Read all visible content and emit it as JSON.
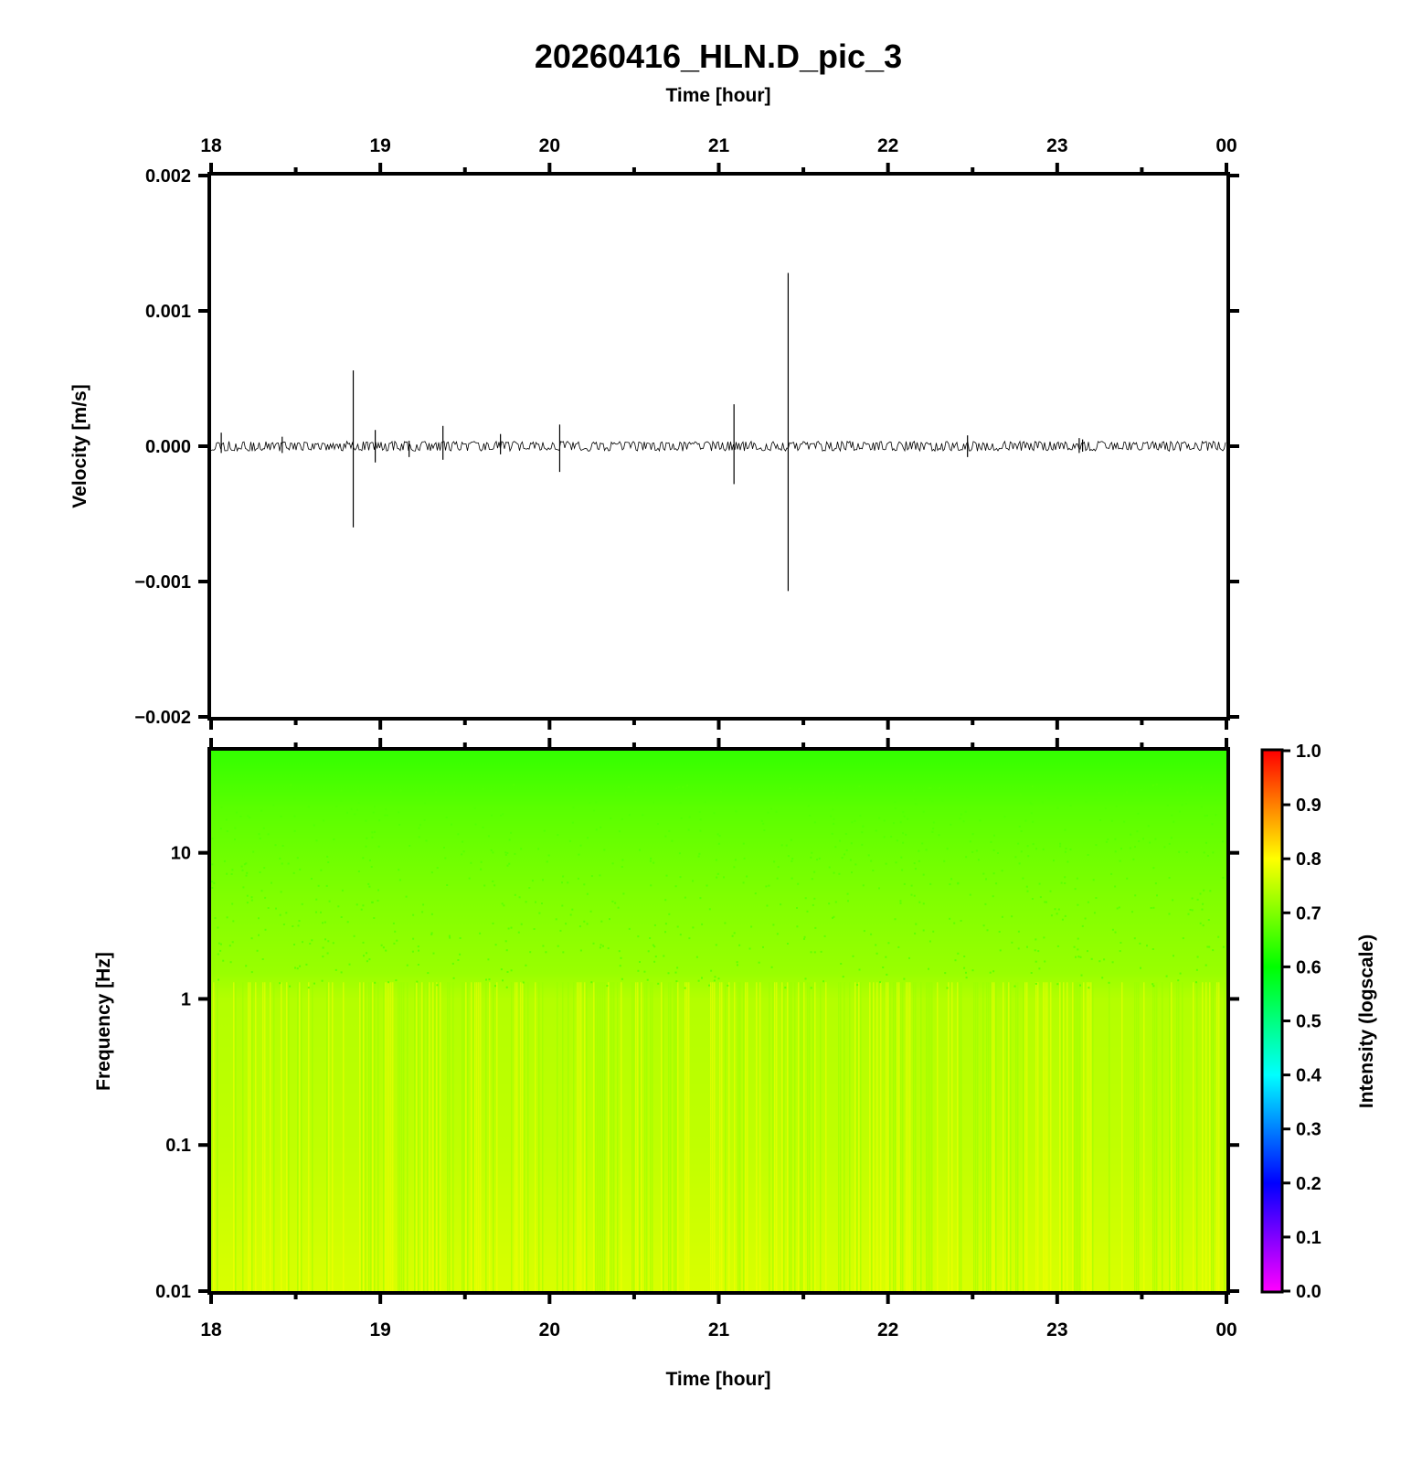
{
  "title": "20260416_HLN.D_pic_3",
  "chart_data": [
    {
      "type": "line",
      "xlabel": "Time [hour]",
      "ylabel": "Velocity [m/s]",
      "x_ticks": [
        "18",
        "19",
        "20",
        "21",
        "22",
        "23",
        "00"
      ],
      "x_range": [
        18,
        24
      ],
      "ylim": [
        -0.002,
        0.002
      ],
      "y_ticks": [
        "0.002",
        "0.001",
        "0.000",
        "−0.001",
        "−0.002"
      ],
      "noise_amplitude": 3e-05,
      "spikes": [
        {
          "t": 18.06,
          "max": 0.0001,
          "min": -5e-05
        },
        {
          "t": 18.42,
          "max": 7e-05,
          "min": -5e-05
        },
        {
          "t": 18.84,
          "max": 0.00056,
          "min": -0.0006
        },
        {
          "t": 18.97,
          "max": 0.00012,
          "min": -0.00012
        },
        {
          "t": 19.17,
          "max": 4e-05,
          "min": -8e-05
        },
        {
          "t": 19.37,
          "max": 0.00015,
          "min": -0.0001
        },
        {
          "t": 19.71,
          "max": 9e-05,
          "min": -6e-05
        },
        {
          "t": 20.06,
          "max": 0.00016,
          "min": -0.00019
        },
        {
          "t": 21.09,
          "max": 0.00031,
          "min": -0.00028
        },
        {
          "t": 21.41,
          "max": 0.00128,
          "min": -0.00107
        },
        {
          "t": 22.47,
          "max": 8e-05,
          "min": -8e-05
        },
        {
          "t": 23.13,
          "max": 6e-05,
          "min": -5e-05
        },
        {
          "t": 23.15,
          "max": 5e-05,
          "min": -4e-05
        }
      ]
    },
    {
      "type": "heatmap",
      "xlabel": "Time [hour]",
      "ylabel": "Frequency [Hz]",
      "x_ticks": [
        "18",
        "19",
        "20",
        "21",
        "22",
        "23",
        "00"
      ],
      "x_range": [
        18,
        24
      ],
      "y_scale": "log",
      "ylim": [
        0.01,
        50
      ],
      "y_ticks": [
        {
          "value": 10,
          "label": "10"
        },
        {
          "value": 1,
          "label": "1"
        },
        {
          "value": 0.1,
          "label": "0.1"
        },
        {
          "value": 0.01,
          "label": "0.01"
        }
      ],
      "intensity_profile": [
        {
          "freq": 50,
          "intensity": 0.64
        },
        {
          "freq": 20,
          "intensity": 0.67
        },
        {
          "freq": 5,
          "intensity": 0.7
        },
        {
          "freq": 1.5,
          "intensity": 0.72
        },
        {
          "freq": 1,
          "intensity": 0.74
        },
        {
          "freq": 0.1,
          "intensity": 0.75
        },
        {
          "freq": 0.01,
          "intensity": 0.77
        }
      ],
      "colorbar": {
        "label": "Intensity (logscale)",
        "range": [
          0,
          1
        ],
        "ticks": [
          "1.0",
          "0.9",
          "0.8",
          "0.7",
          "0.6",
          "0.5",
          "0.4",
          "0.3",
          "0.2",
          "0.1",
          "0.0"
        ],
        "colors": [
          "#ff00ff",
          "#8000ff",
          "#0000ff",
          "#0080ff",
          "#00ffff",
          "#00ff80",
          "#00ff00",
          "#80ff00",
          "#ffff00",
          "#ff8000",
          "#ff0000"
        ]
      }
    }
  ]
}
